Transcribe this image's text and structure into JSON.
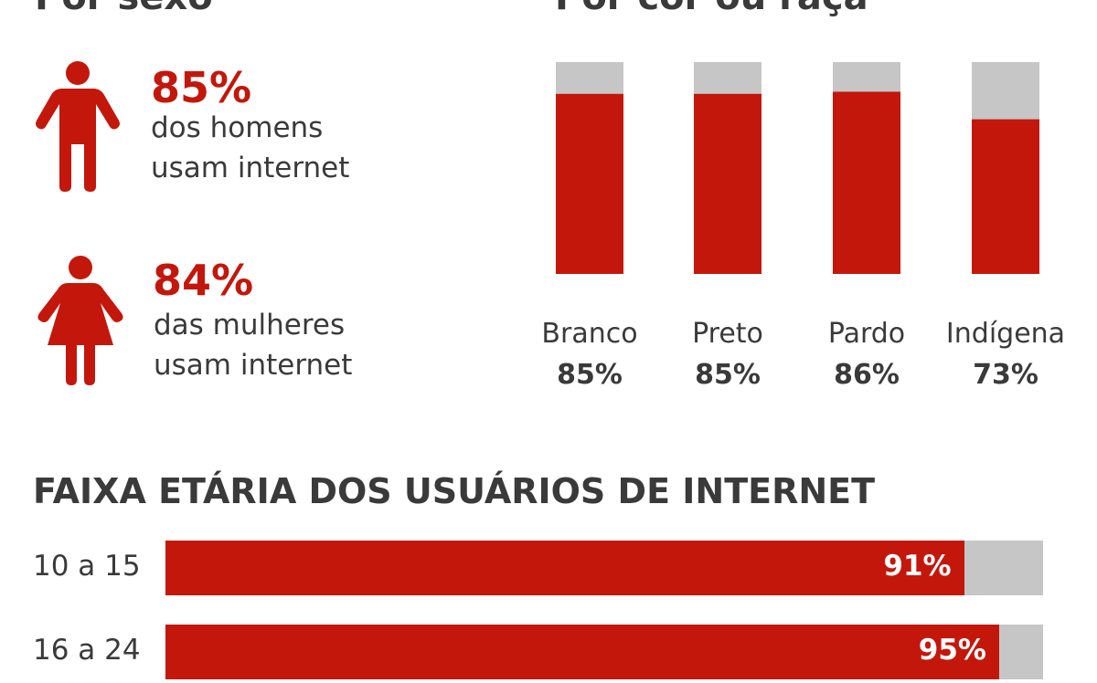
{
  "sexo": {
    "title": "Por sexo",
    "male": {
      "pct": "85%",
      "line1": "dos homens",
      "line2": "usam internet"
    },
    "female": {
      "pct": "84%",
      "line1": "das mulheres",
      "line2": "usam internet"
    }
  },
  "raca": {
    "title": "Por cor ou raça"
  },
  "colors": {
    "accent": "#c4170c",
    "track": "#c6c6c6",
    "text": "#3a3a3a"
  },
  "chart_data": [
    {
      "type": "bar",
      "title": "Por cor ou raça",
      "categories": [
        "Branco",
        "Preto",
        "Pardo",
        "Indígena"
      ],
      "values": [
        85,
        85,
        86,
        73
      ],
      "value_labels": [
        "85%",
        "85%",
        "86%",
        "73%"
      ],
      "ylim": [
        0,
        100
      ],
      "stacked_remainder": true,
      "grid": false
    },
    {
      "type": "bar",
      "orientation": "horizontal",
      "title": "FAIXA ETÁRIA DOS USUÁRIOS DE INTERNET",
      "categories": [
        "10 a 15",
        "16 a 24"
      ],
      "values": [
        91,
        95
      ],
      "value_labels": [
        "91%",
        "95%"
      ],
      "xlim": [
        0,
        100
      ],
      "stacked_remainder": true,
      "grid": false
    }
  ]
}
